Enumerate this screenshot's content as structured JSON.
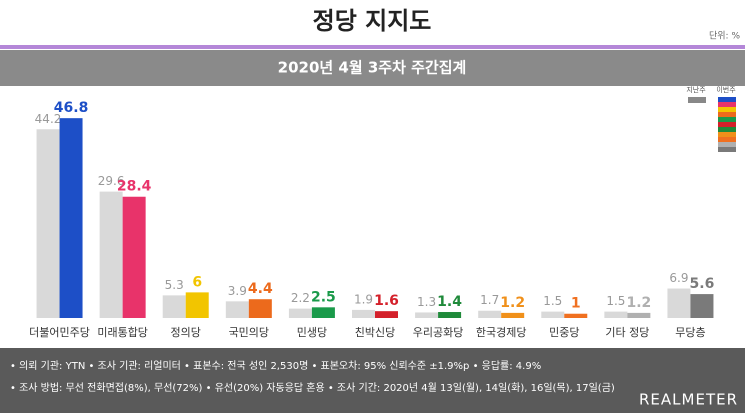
{
  "chart_data": {
    "type": "bar",
    "title": "정당 지지도",
    "unit_note": "단위: %",
    "subtitle": "2020년 4월 3주차 주간집계",
    "categories": [
      "더불어민주당",
      "미래통합당",
      "정의당",
      "국민의당",
      "민생당",
      "친박신당",
      "우리공화당",
      "한국경제당",
      "민중당",
      "기타 정당",
      "무당층"
    ],
    "series": [
      {
        "name": "지난주",
        "color": "#d9d9d9",
        "label_color": "#999999",
        "values": [
          44.2,
          29.6,
          5.3,
          3.9,
          2.2,
          1.9,
          1.3,
          1.7,
          1.5,
          1.5,
          6.9
        ]
      },
      {
        "name": "이번주",
        "colors": [
          "#1d4fc7",
          "#e8336a",
          "#f2c500",
          "#ec6a1c",
          "#1a9a4a",
          "#d4202a",
          "#1f8a3a",
          "#f0901a",
          "#f07020",
          "#b0b0b0",
          "#7a7a7a"
        ],
        "values": [
          46.8,
          28.4,
          6.0,
          4.4,
          2.5,
          1.6,
          1.4,
          1.2,
          1.0,
          1.2,
          5.6
        ]
      }
    ],
    "notes": [
      "• 의뢰 기관: YTN • 조사 기관: 리얼미터 • 표본수: 전국 성인 2,530명 • 표본오차: 95% 신뢰수준 ±1.9%p • 응답률: 4.9%",
      "• 조사 방법: 무선 전화면접(8%), 무선(72%) • 유선(20%) 자동응답 혼용 • 조사 기간: 2020년 4월 13일(월), 14일(화), 16일(목), 17일(금)"
    ],
    "brand": "REALMETER"
  }
}
